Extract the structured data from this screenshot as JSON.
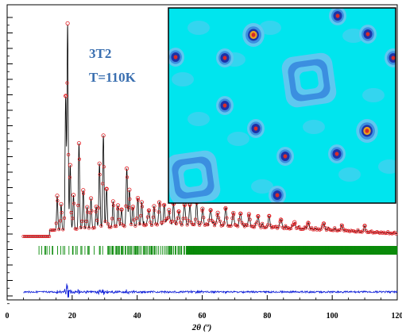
{
  "chart_data": [
    {
      "type": "line",
      "title": "",
      "xlabel": "2θ (º)",
      "ylabel": "",
      "xlim": [
        0,
        120
      ],
      "x_ticks": [
        0,
        20,
        40,
        60,
        80,
        100,
        120
      ],
      "x_tick_labels": [
        "0",
        "20",
        "40",
        "60",
        "80",
        "100",
        "120"
      ],
      "annotations": [
        "3T2",
        "T=110K"
      ],
      "grid": false,
      "series": [],
      "peaks": [
        {
          "x": 15.4,
          "h": 0.16
        },
        {
          "x": 16.6,
          "h": 0.12
        },
        {
          "x": 18.0,
          "h": 0.62
        },
        {
          "x": 18.6,
          "h": 0.96
        },
        {
          "x": 19.4,
          "h": 0.3
        },
        {
          "x": 20.4,
          "h": 0.16
        },
        {
          "x": 22.1,
          "h": 0.4
        },
        {
          "x": 23.4,
          "h": 0.18
        },
        {
          "x": 24.6,
          "h": 0.1
        },
        {
          "x": 25.8,
          "h": 0.14
        },
        {
          "x": 27.4,
          "h": 0.1
        },
        {
          "x": 28.4,
          "h": 0.3
        },
        {
          "x": 29.6,
          "h": 0.43
        },
        {
          "x": 30.6,
          "h": 0.18
        },
        {
          "x": 32.6,
          "h": 0.12
        },
        {
          "x": 34.1,
          "h": 0.1
        },
        {
          "x": 35.2,
          "h": 0.08
        },
        {
          "x": 36.8,
          "h": 0.27
        },
        {
          "x": 37.6,
          "h": 0.17
        },
        {
          "x": 38.7,
          "h": 0.09
        },
        {
          "x": 40.2,
          "h": 0.13
        },
        {
          "x": 41.4,
          "h": 0.11
        },
        {
          "x": 43.6,
          "h": 0.07
        },
        {
          "x": 45.2,
          "h": 0.06
        },
        {
          "x": 46.8,
          "h": 0.1
        },
        {
          "x": 48.3,
          "h": 0.09
        },
        {
          "x": 49.8,
          "h": 0.07
        },
        {
          "x": 51.2,
          "h": 0.08
        },
        {
          "x": 52.8,
          "h": 0.06
        },
        {
          "x": 54.6,
          "h": 0.09
        },
        {
          "x": 56.2,
          "h": 0.07
        },
        {
          "x": 58.3,
          "h": 0.08
        },
        {
          "x": 60.1,
          "h": 0.06
        },
        {
          "x": 62.6,
          "h": 0.07
        },
        {
          "x": 64.8,
          "h": 0.06
        },
        {
          "x": 67.2,
          "h": 0.07
        },
        {
          "x": 69.6,
          "h": 0.05
        },
        {
          "x": 71.8,
          "h": 0.06
        },
        {
          "x": 74.4,
          "h": 0.05
        },
        {
          "x": 77.2,
          "h": 0.05
        },
        {
          "x": 80.6,
          "h": 0.04
        },
        {
          "x": 84.2,
          "h": 0.04
        },
        {
          "x": 88.4,
          "h": 0.03
        },
        {
          "x": 92.6,
          "h": 0.03
        },
        {
          "x": 97.4,
          "h": 0.03
        },
        {
          "x": 103.0,
          "h": 0.02
        },
        {
          "x": 110.0,
          "h": 0.02
        }
      ],
      "colors": {
        "observed": "#e0191e",
        "calculated": "#000000",
        "bragg": "#0a8a0a",
        "difference": "#1020d8",
        "label": "#3a6fb0"
      }
    },
    {
      "type": "heatmap",
      "description_items": [],
      "colors": {
        "background": "#00e5ee",
        "level1": "#5ec8f0",
        "level2": "#3b8fe0",
        "level3": "#1c33a8",
        "level4": "#e8a020",
        "level5": "#d62a2a"
      }
    }
  ]
}
